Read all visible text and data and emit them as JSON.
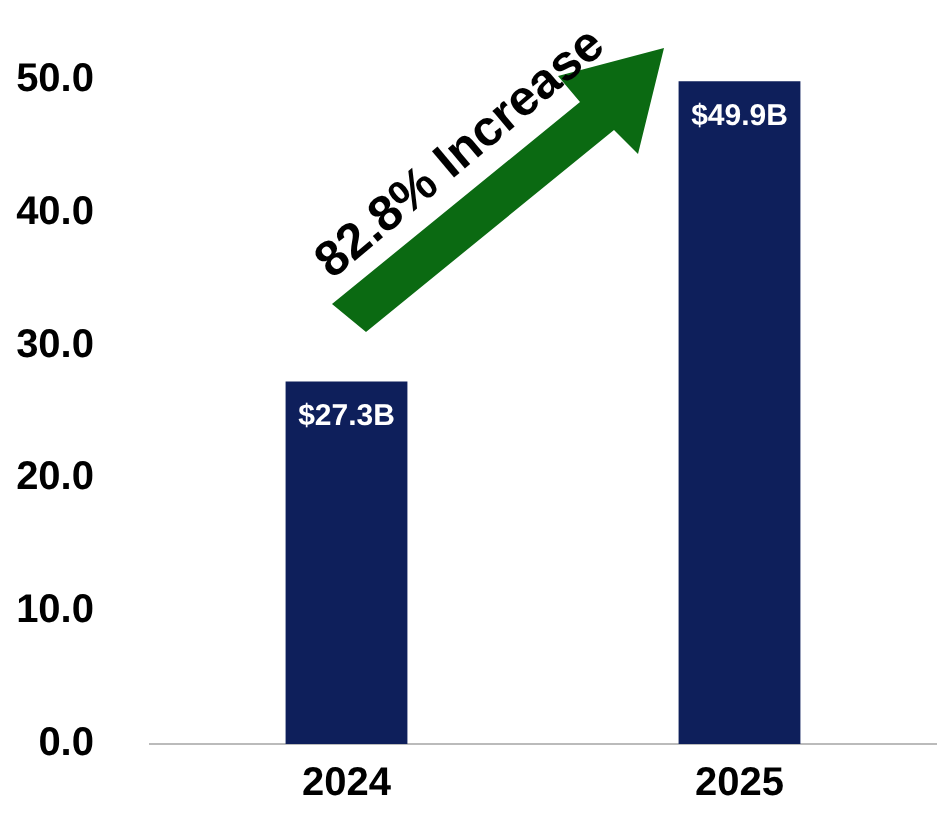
{
  "chart_data": {
    "type": "bar",
    "categories": [
      "2024",
      "2025"
    ],
    "values": [
      27.3,
      49.9
    ],
    "color": "#0e1f5b",
    "value_labels": [
      "$27.3B",
      "$49.9B"
    ],
    "ylim": [
      0,
      50
    ],
    "yticks": [
      {
        "value": 0,
        "label": "0.0"
      },
      {
        "value": 10,
        "label": "10.0"
      },
      {
        "value": 20,
        "label": "20.0"
      },
      {
        "value": 30,
        "label": "30.0"
      },
      {
        "value": 40,
        "label": "40.0"
      },
      {
        "value": 50,
        "label": "50.0"
      }
    ],
    "grid": false,
    "legend": false,
    "annotations": [
      "82.8% Increase"
    ]
  }
}
